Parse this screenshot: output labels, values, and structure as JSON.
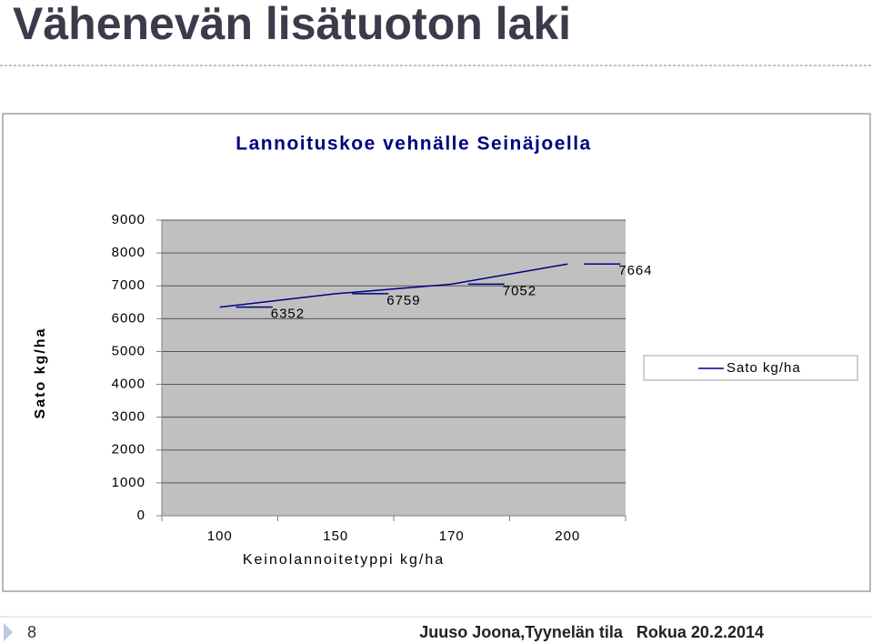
{
  "slide": {
    "title": "Vähenevän lisätuoton laki",
    "page_number": "8",
    "footer": "Juuso Joona,Tyynelän tila   Rokua 20.2.2014"
  },
  "chart_data": {
    "type": "line",
    "title": "Lannoituskoe vehnälle Seinäjoella",
    "x_label": "Keinolannoitetyppi kg/ha",
    "y_label": "Sato kg/ha",
    "categories": [
      "100",
      "150",
      "170",
      "200"
    ],
    "series": [
      {
        "name": "Sato kg/ha",
        "color": "#000080",
        "values": [
          6352,
          6759,
          7052,
          7664
        ]
      }
    ],
    "ylim": [
      0,
      9000
    ],
    "yticks": [
      0,
      1000,
      2000,
      3000,
      4000,
      5000,
      6000,
      7000,
      8000,
      9000
    ],
    "grid": true,
    "legend": "right",
    "data_labels": true
  }
}
